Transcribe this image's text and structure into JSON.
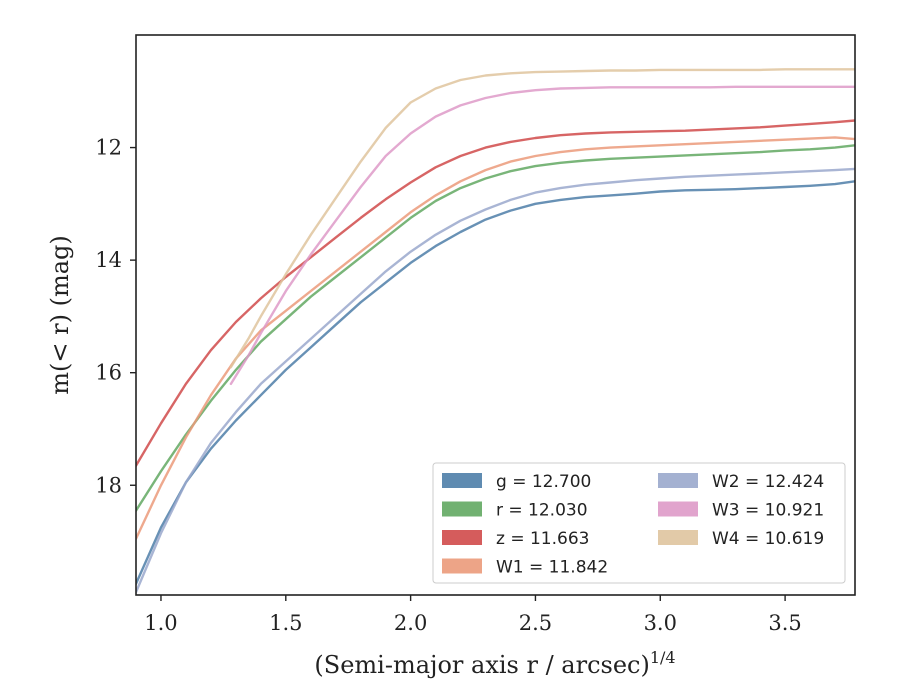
{
  "chart_data": {
    "type": "line",
    "xlabel": "(Semi-major axis r / arcsec)",
    "xlabel_exponent": "1/4",
    "ylabel": "m(< r) (mag)",
    "xlim": [
      0.9,
      3.78
    ],
    "ylim": [
      19.95,
      10.0
    ],
    "y_inverted": true,
    "grid": false,
    "legend_position": "lower-right",
    "x_ticks": [
      "1.0",
      "1.5",
      "2.0",
      "2.5",
      "3.0",
      "3.5"
    ],
    "x_tick_values": [
      1.0,
      1.5,
      2.0,
      2.5,
      3.0,
      3.5
    ],
    "y_ticks": [
      "12",
      "14",
      "16",
      "18"
    ],
    "y_tick_values": [
      12,
      14,
      16,
      18
    ],
    "series": [
      {
        "name": "g",
        "legend_label": "g = 12.700",
        "color": "#4e7ea8",
        "x": [
          0.9,
          1.0,
          1.1,
          1.2,
          1.3,
          1.4,
          1.5,
          1.6,
          1.7,
          1.8,
          1.9,
          2.0,
          2.1,
          2.2,
          2.3,
          2.4,
          2.5,
          2.6,
          2.7,
          2.8,
          2.9,
          3.0,
          3.1,
          3.2,
          3.3,
          3.4,
          3.5,
          3.6,
          3.7,
          3.78
        ],
        "y": [
          19.75,
          18.75,
          17.95,
          17.35,
          16.85,
          16.4,
          15.95,
          15.55,
          15.15,
          14.75,
          14.4,
          14.05,
          13.75,
          13.5,
          13.28,
          13.12,
          13.0,
          12.93,
          12.88,
          12.85,
          12.82,
          12.78,
          12.76,
          12.75,
          12.74,
          12.72,
          12.7,
          12.68,
          12.65,
          12.6
        ]
      },
      {
        "name": "r",
        "legend_label": "r = 12.030",
        "color": "#62a862",
        "x": [
          0.9,
          1.0,
          1.1,
          1.2,
          1.3,
          1.4,
          1.5,
          1.6,
          1.7,
          1.8,
          1.9,
          2.0,
          2.1,
          2.2,
          2.3,
          2.4,
          2.5,
          2.6,
          2.7,
          2.8,
          2.9,
          3.0,
          3.1,
          3.2,
          3.3,
          3.4,
          3.5,
          3.6,
          3.7,
          3.78
        ],
        "y": [
          18.45,
          17.75,
          17.1,
          16.5,
          15.95,
          15.45,
          15.05,
          14.65,
          14.3,
          13.95,
          13.6,
          13.25,
          12.95,
          12.72,
          12.55,
          12.42,
          12.33,
          12.27,
          12.23,
          12.2,
          12.18,
          12.16,
          12.14,
          12.12,
          12.1,
          12.08,
          12.05,
          12.03,
          12.0,
          11.96
        ]
      },
      {
        "name": "z",
        "legend_label": "z = 11.663",
        "color": "#d04a4a",
        "x": [
          0.9,
          1.0,
          1.1,
          1.2,
          1.3,
          1.4,
          1.5,
          1.6,
          1.7,
          1.8,
          1.9,
          2.0,
          2.1,
          2.2,
          2.3,
          2.4,
          2.5,
          2.6,
          2.7,
          2.8,
          2.9,
          3.0,
          3.1,
          3.2,
          3.3,
          3.4,
          3.5,
          3.6,
          3.7,
          3.78
        ],
        "y": [
          17.65,
          16.9,
          16.2,
          15.6,
          15.1,
          14.68,
          14.3,
          13.95,
          13.6,
          13.25,
          12.92,
          12.62,
          12.35,
          12.15,
          12.0,
          11.9,
          11.83,
          11.78,
          11.75,
          11.73,
          11.72,
          11.71,
          11.7,
          11.68,
          11.66,
          11.64,
          11.61,
          11.58,
          11.55,
          11.52
        ]
      },
      {
        "name": "W1",
        "legend_label": "W1 = 11.842",
        "color": "#eb9a7a",
        "x": [
          0.9,
          1.0,
          1.1,
          1.2,
          1.3,
          1.4,
          1.5,
          1.6,
          1.7,
          1.8,
          1.9,
          2.0,
          2.1,
          2.2,
          2.3,
          2.4,
          2.5,
          2.6,
          2.7,
          2.8,
          2.9,
          3.0,
          3.1,
          3.2,
          3.3,
          3.4,
          3.5,
          3.6,
          3.7,
          3.78
        ],
        "y": [
          18.95,
          18.0,
          17.15,
          16.4,
          15.75,
          15.25,
          14.9,
          14.55,
          14.2,
          13.85,
          13.5,
          13.15,
          12.85,
          12.6,
          12.4,
          12.25,
          12.15,
          12.08,
          12.03,
          12.0,
          11.98,
          11.96,
          11.94,
          11.92,
          11.9,
          11.88,
          11.86,
          11.84,
          11.82,
          11.85
        ]
      },
      {
        "name": "W2",
        "legend_label": "W2 = 12.424",
        "color": "#9aa8cc",
        "x": [
          0.9,
          1.0,
          1.1,
          1.2,
          1.3,
          1.4,
          1.5,
          1.6,
          1.7,
          1.8,
          1.9,
          2.0,
          2.1,
          2.2,
          2.3,
          2.4,
          2.5,
          2.6,
          2.7,
          2.8,
          2.9,
          3.0,
          3.1,
          3.2,
          3.3,
          3.4,
          3.5,
          3.6,
          3.7,
          3.78
        ],
        "y": [
          19.9,
          18.85,
          17.95,
          17.25,
          16.7,
          16.2,
          15.8,
          15.4,
          15.0,
          14.6,
          14.2,
          13.85,
          13.55,
          13.3,
          13.1,
          12.93,
          12.8,
          12.72,
          12.66,
          12.62,
          12.58,
          12.55,
          12.52,
          12.5,
          12.48,
          12.46,
          12.44,
          12.42,
          12.4,
          12.38
        ]
      },
      {
        "name": "W3",
        "legend_label": "W3 = 10.921",
        "color": "#de9ac8",
        "x": [
          1.28,
          1.35,
          1.4,
          1.5,
          1.6,
          1.7,
          1.8,
          1.9,
          2.0,
          2.1,
          2.2,
          2.3,
          2.4,
          2.5,
          2.6,
          2.7,
          2.8,
          2.9,
          3.0,
          3.1,
          3.2,
          3.3,
          3.4,
          3.5,
          3.6,
          3.7,
          3.78
        ],
        "y": [
          16.2,
          15.7,
          15.3,
          14.55,
          13.9,
          13.3,
          12.7,
          12.15,
          11.75,
          11.45,
          11.25,
          11.12,
          11.03,
          10.98,
          10.95,
          10.94,
          10.93,
          10.93,
          10.93,
          10.93,
          10.93,
          10.92,
          10.92,
          10.92,
          10.92,
          10.92,
          10.92
        ]
      },
      {
        "name": "W4",
        "legend_label": "W4 = 10.619",
        "color": "#dfc49e",
        "x": [
          1.28,
          1.35,
          1.4,
          1.5,
          1.6,
          1.7,
          1.8,
          1.9,
          2.0,
          2.1,
          2.2,
          2.3,
          2.4,
          2.5,
          2.6,
          2.7,
          2.8,
          2.9,
          3.0,
          3.1,
          3.2,
          3.3,
          3.4,
          3.5,
          3.6,
          3.7,
          3.78
        ],
        "y": [
          15.9,
          15.4,
          15.0,
          14.25,
          13.55,
          12.9,
          12.25,
          11.65,
          11.2,
          10.95,
          10.8,
          10.72,
          10.68,
          10.66,
          10.65,
          10.64,
          10.63,
          10.63,
          10.62,
          10.62,
          10.62,
          10.62,
          10.62,
          10.61,
          10.61,
          10.61,
          10.61
        ]
      }
    ]
  }
}
